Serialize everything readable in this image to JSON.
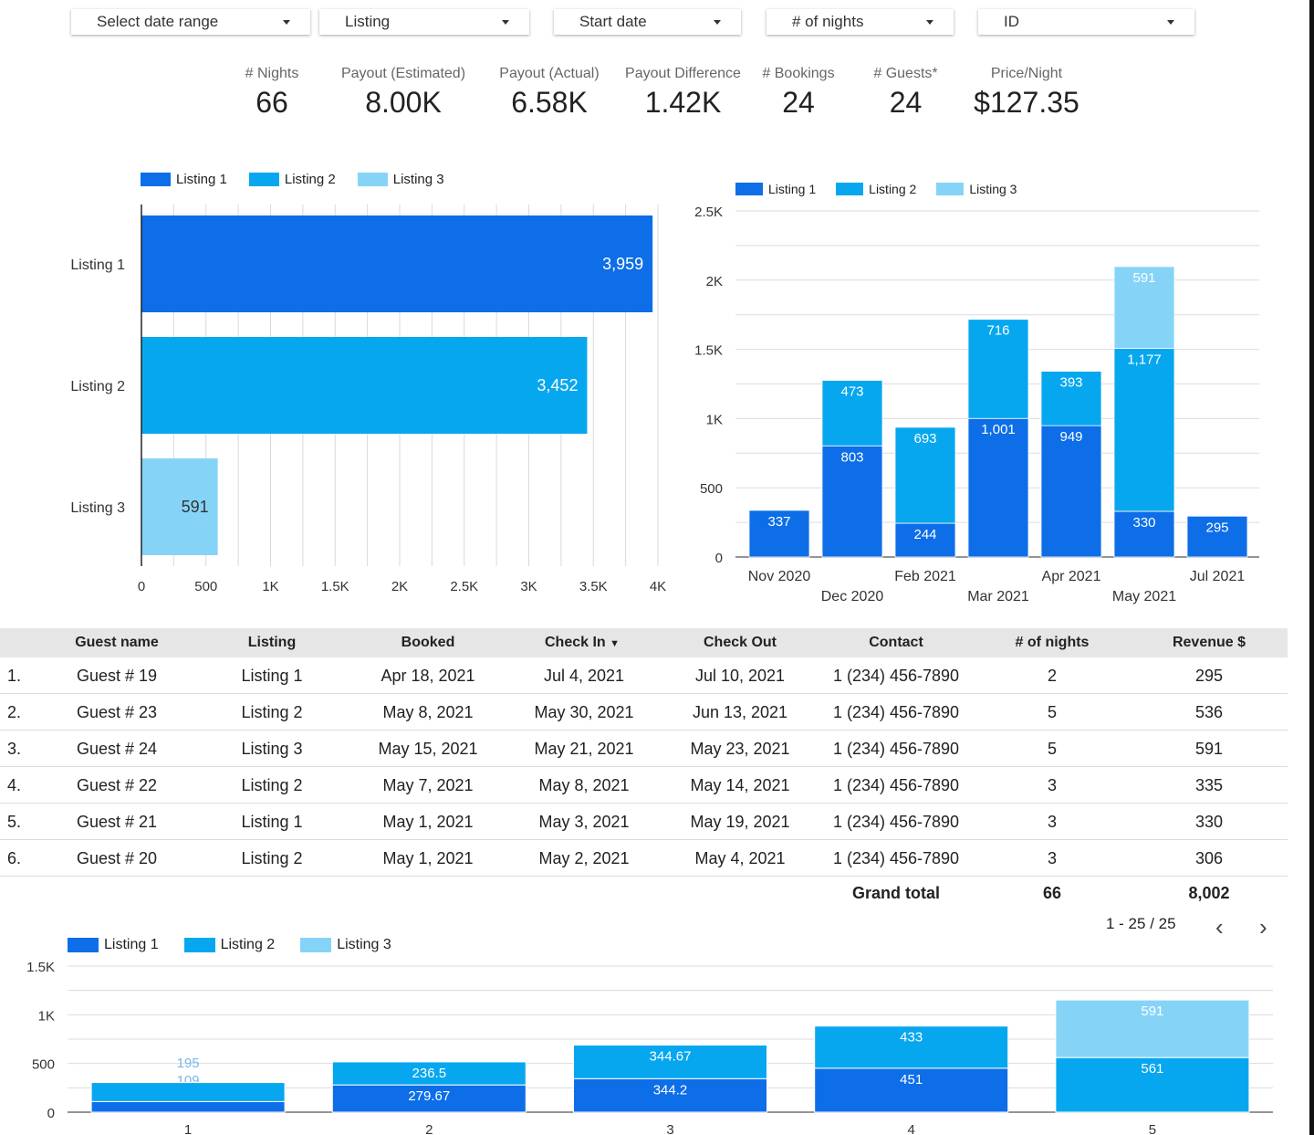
{
  "filters": [
    {
      "label": "Select date range"
    },
    {
      "label": "Listing"
    },
    {
      "label": "Start date"
    },
    {
      "label": "# of nights"
    },
    {
      "label": "ID"
    }
  ],
  "kpis": [
    {
      "label": "# Nights",
      "value": "66"
    },
    {
      "label": "Payout (Estimated)",
      "value": "8.00K"
    },
    {
      "label": "Payout (Actual)",
      "value": "6.58K"
    },
    {
      "label": "Payout Difference",
      "value": "1.42K"
    },
    {
      "label": "# Bookings",
      "value": "24"
    },
    {
      "label": "# Guests*",
      "value": "24"
    },
    {
      "label": "Price/Night",
      "value": "$127.35"
    }
  ],
  "colors": {
    "listing1": "#0d6ee8",
    "listing2": "#06a7ef",
    "listing3": "#85d4f8"
  },
  "chart_data": [
    {
      "type": "bar",
      "orientation": "horizontal",
      "categories": [
        "Listing 1",
        "Listing 2",
        "Listing 3"
      ],
      "values": [
        3959,
        3452,
        591
      ],
      "data_labels": [
        "3,959",
        "3,452",
        "591"
      ],
      "legend": [
        "Listing 1",
        "Listing 2",
        "Listing 3"
      ],
      "legend_position": "top-left",
      "xlim": [
        0,
        4000
      ],
      "x_ticks": [
        "0",
        "500",
        "1K",
        "1.5K",
        "2K",
        "2.5K",
        "3K",
        "3.5K",
        "4K"
      ],
      "grid": true
    },
    {
      "type": "bar",
      "stacked": true,
      "categories": [
        "Nov 2020",
        "Dec 2020",
        "Feb 2021",
        "Mar 2021",
        "Apr 2021",
        "May 2021",
        "Jul 2021"
      ],
      "series": [
        {
          "name": "Listing 1",
          "values": [
            337,
            803,
            244,
            1001,
            949,
            330,
            295
          ],
          "labels": [
            "337",
            "803",
            "244",
            "1,001",
            "949",
            "330",
            "295"
          ]
        },
        {
          "name": "Listing 2",
          "values": [
            0,
            473,
            693,
            716,
            393,
            1177,
            0
          ],
          "labels": [
            "",
            "473",
            "693",
            "716",
            "393",
            "1,177",
            ""
          ]
        },
        {
          "name": "Listing 3",
          "values": [
            0,
            0,
            0,
            0,
            0,
            591,
            0
          ],
          "labels": [
            "",
            "",
            "",
            "",
            "",
            "591",
            ""
          ]
        }
      ],
      "legend_position": "top-left",
      "ylim": [
        0,
        2500
      ],
      "y_ticks": [
        "0",
        "500",
        "1K",
        "1.5K",
        "2K",
        "2.5K"
      ],
      "grid": true
    },
    {
      "type": "bar",
      "stacked": true,
      "categories": [
        "1",
        "2",
        "3",
        "4",
        "5"
      ],
      "series": [
        {
          "name": "Listing 1",
          "values": [
            109,
            279.67,
            344.2,
            451,
            0
          ],
          "labels": [
            "109",
            "279.67",
            "344.2",
            "451",
            ""
          ]
        },
        {
          "name": "Listing 2",
          "values": [
            195,
            236.5,
            344.67,
            433,
            561
          ],
          "labels": [
            "195",
            "236.5",
            "344.67",
            "433",
            "561"
          ]
        },
        {
          "name": "Listing 3",
          "values": [
            0,
            0,
            0,
            0,
            591
          ],
          "labels": [
            "",
            "",
            "",
            "",
            "591"
          ]
        }
      ],
      "legend_position": "top-left",
      "ylim": [
        0,
        1500
      ],
      "y_ticks": [
        "0",
        "500",
        "1K",
        "1.5K"
      ],
      "grid": true
    }
  ],
  "table": {
    "headers": [
      "Guest name",
      "Listing",
      "Booked",
      "Check In",
      "Check Out",
      "Contact",
      "# of nights",
      "Revenue $"
    ],
    "sort_indicator": "▼",
    "rows": [
      {
        "idx": "1.",
        "cells": [
          "Guest # 19",
          "Listing 1",
          "Apr 18, 2021",
          "Jul 4, 2021",
          "Jul 10, 2021",
          "1 (234) 456-7890",
          "2",
          "295"
        ]
      },
      {
        "idx": "2.",
        "cells": [
          "Guest # 23",
          "Listing 2",
          "May 8, 2021",
          "May 30, 2021",
          "Jun 13, 2021",
          "1 (234) 456-7890",
          "5",
          "536"
        ]
      },
      {
        "idx": "3.",
        "cells": [
          "Guest # 24",
          "Listing 3",
          "May 15, 2021",
          "May 21, 2021",
          "May 23, 2021",
          "1 (234) 456-7890",
          "5",
          "591"
        ]
      },
      {
        "idx": "4.",
        "cells": [
          "Guest # 22",
          "Listing 2",
          "May 7, 2021",
          "May 8, 2021",
          "May 14, 2021",
          "1 (234) 456-7890",
          "3",
          "335"
        ]
      },
      {
        "idx": "5.",
        "cells": [
          "Guest # 21",
          "Listing 1",
          "May 1, 2021",
          "May 3, 2021",
          "May 19, 2021",
          "1 (234) 456-7890",
          "3",
          "330"
        ]
      },
      {
        "idx": "6.",
        "cells": [
          "Guest # 20",
          "Listing 2",
          "May 1, 2021",
          "May 2, 2021",
          "May 4, 2021",
          "1 (234) 456-7890",
          "3",
          "306"
        ]
      }
    ],
    "total": {
      "label": "Grand total",
      "nights": "66",
      "revenue": "8,002"
    },
    "pagination": "1 - 25 / 25",
    "prev_icon": "‹",
    "next_icon": "›"
  }
}
